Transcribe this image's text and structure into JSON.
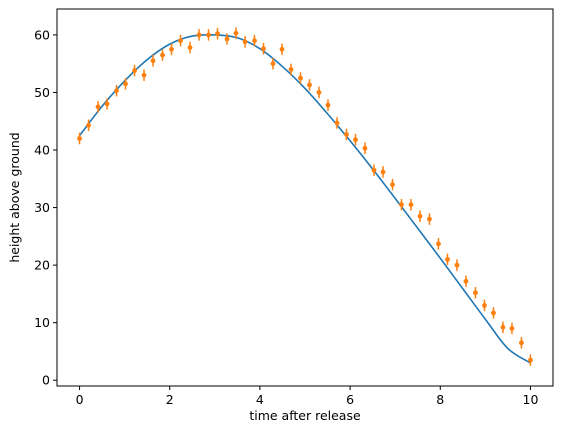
{
  "chart_data": {
    "type": "scatter",
    "title": "",
    "xlabel": "time after release",
    "ylabel": "height above ground",
    "xlim": [
      -0.5,
      10.5
    ],
    "ylim": [
      -1,
      64.5
    ],
    "xticks": [
      0,
      2,
      4,
      6,
      8,
      10
    ],
    "yticks": [
      0,
      10,
      20,
      30,
      40,
      50,
      60
    ],
    "grid": false,
    "series": [
      {
        "kind": "line",
        "color": "#1f77b4",
        "x": [
          0,
          0.5,
          1,
          1.5,
          2,
          2.5,
          3,
          3.5,
          4,
          4.5,
          5,
          5.5,
          6,
          6.5,
          7,
          7.5,
          8,
          8.5,
          9,
          9.5,
          10
        ],
        "y": [
          42.5,
          47.6,
          52.0,
          55.7,
          58.4,
          59.8,
          60.0,
          59.5,
          57.6,
          54.5,
          50.7,
          46.3,
          41.6,
          36.7,
          31.6,
          26.4,
          21.2,
          15.9,
          10.6,
          5.5,
          3.0
        ]
      },
      {
        "kind": "errorbar",
        "color": "#ff7f0e",
        "yerr": 1.0,
        "x": [
          0,
          0.2,
          0.41,
          0.61,
          0.82,
          1.02,
          1.22,
          1.43,
          1.63,
          1.84,
          2.04,
          2.24,
          2.45,
          2.65,
          2.86,
          3.06,
          3.27,
          3.47,
          3.67,
          3.88,
          4.08,
          4.29,
          4.49,
          4.69,
          4.9,
          5.1,
          5.31,
          5.51,
          5.71,
          5.92,
          6.12,
          6.33,
          6.53,
          6.73,
          6.94,
          7.14,
          7.35,
          7.55,
          7.76,
          7.96,
          8.16,
          8.37,
          8.57,
          8.78,
          8.98,
          9.18,
          9.39,
          9.59,
          9.8,
          10
        ],
        "y": [
          42.0,
          44.3,
          47.5,
          48.0,
          50.3,
          51.5,
          53.8,
          53.0,
          55.5,
          56.5,
          57.5,
          59.0,
          57.8,
          60.0,
          60.0,
          60.2,
          59.3,
          60.3,
          58.8,
          59.0,
          57.6,
          55.0,
          57.5,
          54.0,
          52.5,
          51.3,
          50.0,
          47.8,
          44.7,
          42.7,
          41.8,
          40.3,
          36.5,
          36.2,
          34.0,
          30.5,
          30.5,
          28.5,
          28.0,
          23.7,
          21.0,
          20.0,
          17.2,
          15.2,
          13.0,
          11.7,
          9.2,
          9.0,
          6.5,
          3.5
        ]
      }
    ]
  }
}
